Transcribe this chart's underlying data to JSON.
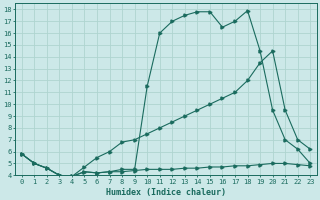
{
  "background_color": "#cce8e8",
  "grid_color": "#afd4d0",
  "line_color": "#1a6b5e",
  "x_label": "Humidex (Indice chaleur)",
  "xlim": [
    -0.5,
    23.5
  ],
  "ylim": [
    4,
    18.5
  ],
  "yticks": [
    4,
    5,
    6,
    7,
    8,
    9,
    10,
    11,
    12,
    13,
    14,
    15,
    16,
    17,
    18
  ],
  "xticks": [
    0,
    1,
    2,
    3,
    4,
    5,
    6,
    7,
    8,
    9,
    10,
    11,
    12,
    13,
    14,
    15,
    16,
    17,
    18,
    19,
    20,
    21,
    22,
    23
  ],
  "line1_x": [
    0,
    1,
    2,
    3,
    4,
    5,
    6,
    7,
    8,
    9,
    10,
    11,
    12,
    13,
    14,
    15,
    16,
    17,
    18,
    19,
    20,
    21,
    22,
    23
  ],
  "line1_y": [
    5.8,
    5.0,
    4.6,
    4.0,
    3.9,
    4.3,
    4.2,
    4.3,
    4.5,
    4.5,
    11.5,
    16.0,
    17.0,
    17.5,
    17.8,
    17.8,
    16.5,
    17.0,
    17.9,
    14.5,
    9.5,
    7.0,
    6.2,
    5.0
  ],
  "line2_x": [
    0,
    1,
    2,
    3,
    4,
    5,
    6,
    7,
    8,
    9,
    10,
    11,
    12,
    13,
    14,
    15,
    16,
    17,
    18,
    19,
    20,
    21,
    22,
    23
  ],
  "line2_y": [
    5.8,
    5.0,
    4.6,
    4.0,
    3.9,
    4.7,
    5.5,
    6.0,
    6.8,
    7.0,
    7.5,
    8.0,
    8.5,
    9.0,
    9.5,
    10.0,
    10.5,
    11.0,
    12.0,
    13.5,
    14.5,
    9.5,
    7.0,
    6.2
  ],
  "line3_x": [
    0,
    1,
    2,
    3,
    4,
    5,
    6,
    7,
    8,
    9,
    10,
    11,
    12,
    13,
    14,
    15,
    16,
    17,
    18,
    19,
    20,
    21,
    22,
    23
  ],
  "line3_y": [
    5.8,
    5.0,
    4.6,
    4.0,
    3.9,
    4.3,
    4.2,
    4.3,
    4.3,
    4.4,
    4.5,
    4.5,
    4.5,
    4.6,
    4.6,
    4.7,
    4.7,
    4.8,
    4.8,
    4.9,
    5.0,
    5.0,
    4.9,
    4.8
  ],
  "tick_fontsize": 5.0,
  "label_fontsize": 6.0
}
